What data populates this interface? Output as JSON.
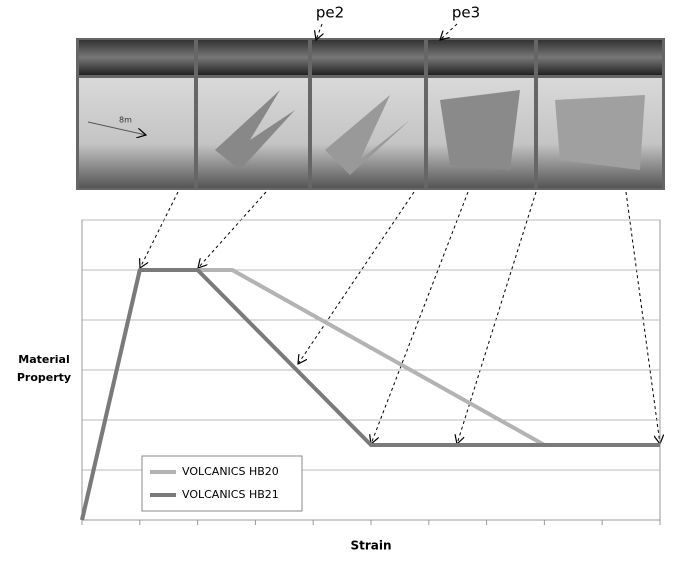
{
  "chart_data": {
    "type": "line",
    "y_label": [
      "Material",
      "Property"
    ],
    "x_label": "Strain",
    "annotations": [
      "pe2",
      "pe3",
      "8m"
    ],
    "xlim": [
      0,
      10
    ],
    "xticks": [
      0,
      1,
      2,
      3,
      4,
      5,
      6,
      7,
      8,
      9,
      10
    ],
    "ylim": [
      0,
      6
    ],
    "yticks": [
      0,
      1,
      2,
      3,
      4,
      5,
      6
    ],
    "grid": true,
    "legend": "lower left",
    "series": [
      {
        "name": "VOLCANICS HB20",
        "color": "#b3b3b3",
        "x": [
          0,
          1,
          2.6,
          8
        ],
        "values": [
          0,
          5,
          5,
          1.5
        ]
      },
      {
        "name": "VOLCANICS HB21",
        "color": "#7a7a7a",
        "x": [
          0,
          1,
          2,
          5,
          10
        ],
        "values": [
          0,
          5,
          5,
          1.5,
          1.5
        ]
      }
    ]
  }
}
